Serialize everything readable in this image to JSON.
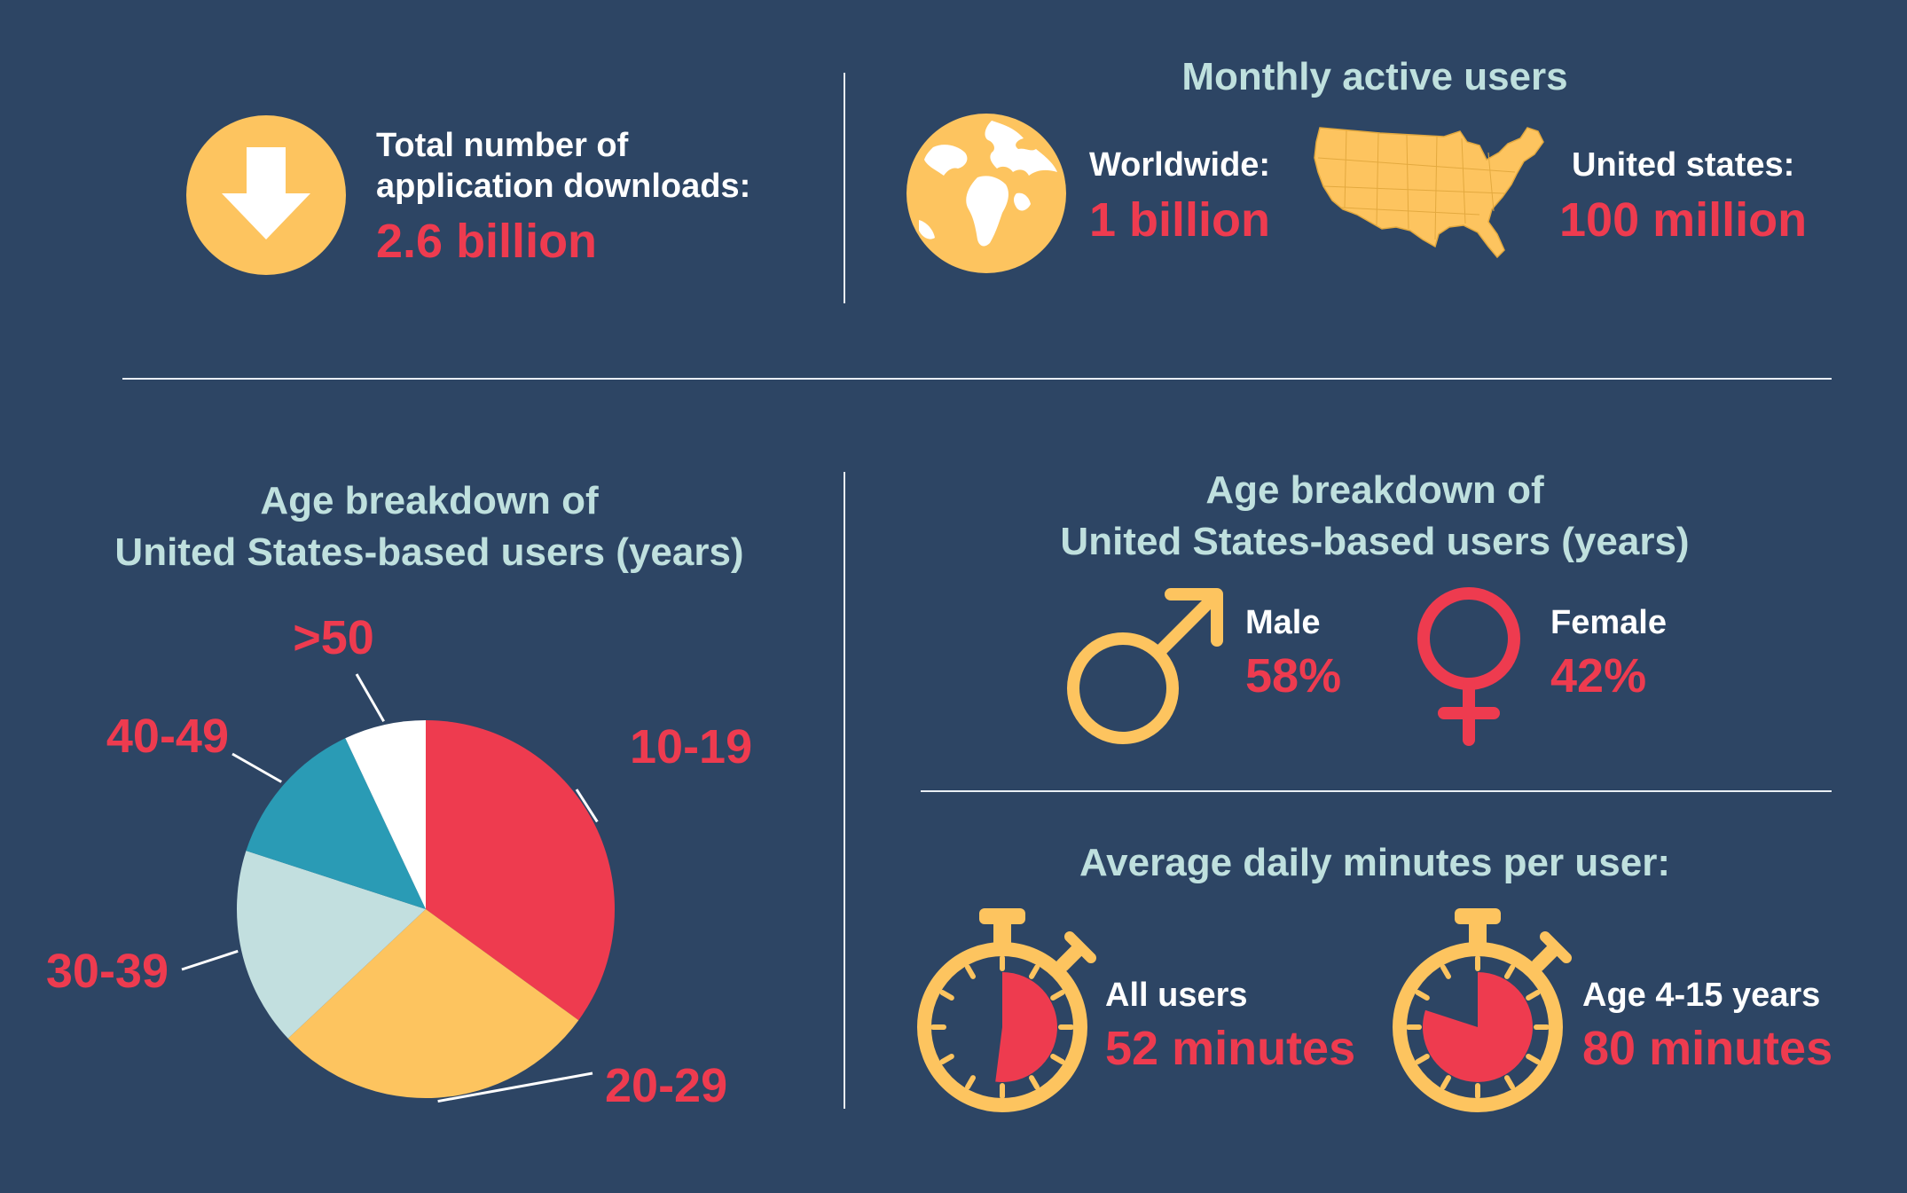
{
  "downloads": {
    "label_line1": "Total number of",
    "label_line2": "application downloads:",
    "value": "2.6 billion",
    "icon": "download-arrow-icon"
  },
  "mau": {
    "title": "Monthly active users",
    "worldwide": {
      "label": "Worldwide:",
      "value": "1 billion",
      "icon": "globe-icon"
    },
    "us": {
      "label": "United states:",
      "value": "100 million",
      "icon": "usa-map-icon"
    }
  },
  "gender": {
    "title_line1": "Age breakdown of",
    "title_line2": "United States-based users (years)",
    "male": {
      "label": "Male",
      "value": "58%",
      "icon": "male-symbol-icon"
    },
    "female": {
      "label": "Female",
      "value": "42%",
      "icon": "female-symbol-icon"
    }
  },
  "minutes": {
    "title": "Average daily minutes per user:",
    "all": {
      "label": "All users",
      "value": "52 minutes",
      "fraction": 0.52,
      "icon": "stopwatch-icon"
    },
    "kids": {
      "label": "Age 4-15 years",
      "value": "80 minutes",
      "fraction": 0.8,
      "icon": "stopwatch-icon"
    }
  },
  "colors": {
    "background": "#2d4564",
    "red": "#ee3b4f",
    "yellow": "#fdc45f",
    "light": "#c2dfdf",
    "teal": "#2a9bb5",
    "white": "#ffffff"
  },
  "chart_data": {
    "type": "pie",
    "title": "Age breakdown of United States-based users (years)",
    "categories": [
      "10-19",
      "20-29",
      "30-39",
      "40-49",
      ">50"
    ],
    "values": [
      35,
      28,
      17,
      13,
      7
    ],
    "colors": [
      "#ee3b4f",
      "#fdc45f",
      "#c2dfdf",
      "#2a9bb5",
      "#ffffff"
    ]
  }
}
